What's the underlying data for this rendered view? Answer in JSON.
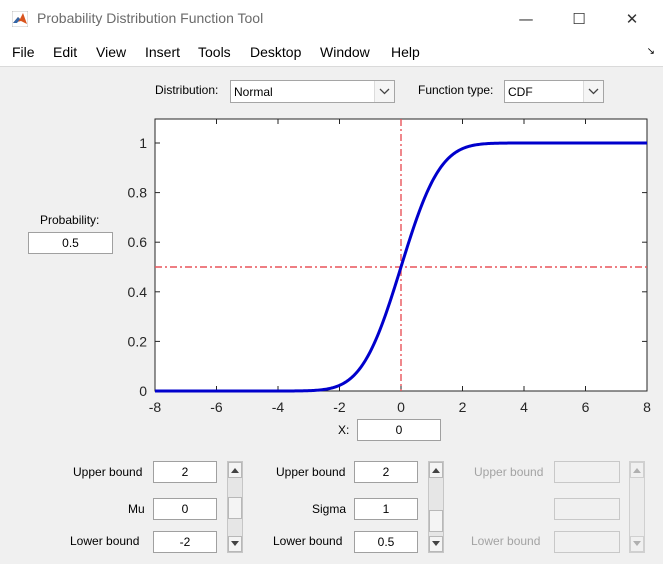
{
  "window": {
    "title": "Probability Distribution Function Tool",
    "minimize": "—",
    "maximize": "☐",
    "close": "✕"
  },
  "menu": {
    "items": [
      "File",
      "Edit",
      "View",
      "Insert",
      "Tools",
      "Desktop",
      "Window",
      "Help"
    ],
    "dock_arrow": "↘"
  },
  "controls": {
    "distribution_label": "Distribution:",
    "distribution_value": "Normal",
    "function_type_label": "Function type:",
    "function_type_value": "CDF",
    "probability_label": "Probability:",
    "probability_value": "0.5",
    "x_label": "X:",
    "x_value": "0"
  },
  "params": [
    {
      "upper_label": "Upper bound",
      "upper_value": "2",
      "name": "Mu",
      "value": "0",
      "lower_label": "Lower bound",
      "lower_value": "-2",
      "enabled": true
    },
    {
      "upper_label": "Upper bound",
      "upper_value": "2",
      "name": "Sigma",
      "value": "1",
      "lower_label": "Lower bound",
      "lower_value": "0.5",
      "enabled": true
    },
    {
      "upper_label": "Upper bound",
      "upper_value": "",
      "name": "",
      "value": "",
      "lower_label": "Lower bound",
      "lower_value": "",
      "enabled": false
    }
  ],
  "colors": {
    "curve": "#0000cc",
    "crosshair": "#e8545a"
  },
  "chart_data": {
    "type": "line",
    "title": "",
    "xlabel": "",
    "ylabel": "",
    "xlim": [
      -8,
      8
    ],
    "ylim": [
      0,
      1
    ],
    "xticks": [
      -8,
      -6,
      -4,
      -2,
      0,
      2,
      4,
      6,
      8
    ],
    "yticks": [
      0,
      0.2,
      0.4,
      0.6,
      0.8,
      1
    ],
    "ytick_labels": [
      "0",
      "0.2",
      "0.4",
      "0.6",
      "0.8",
      "1"
    ],
    "curve": "Normal CDF",
    "mu": 0,
    "sigma": 1,
    "crosshair": {
      "x": 0,
      "y": 0.5
    },
    "grid": false
  }
}
